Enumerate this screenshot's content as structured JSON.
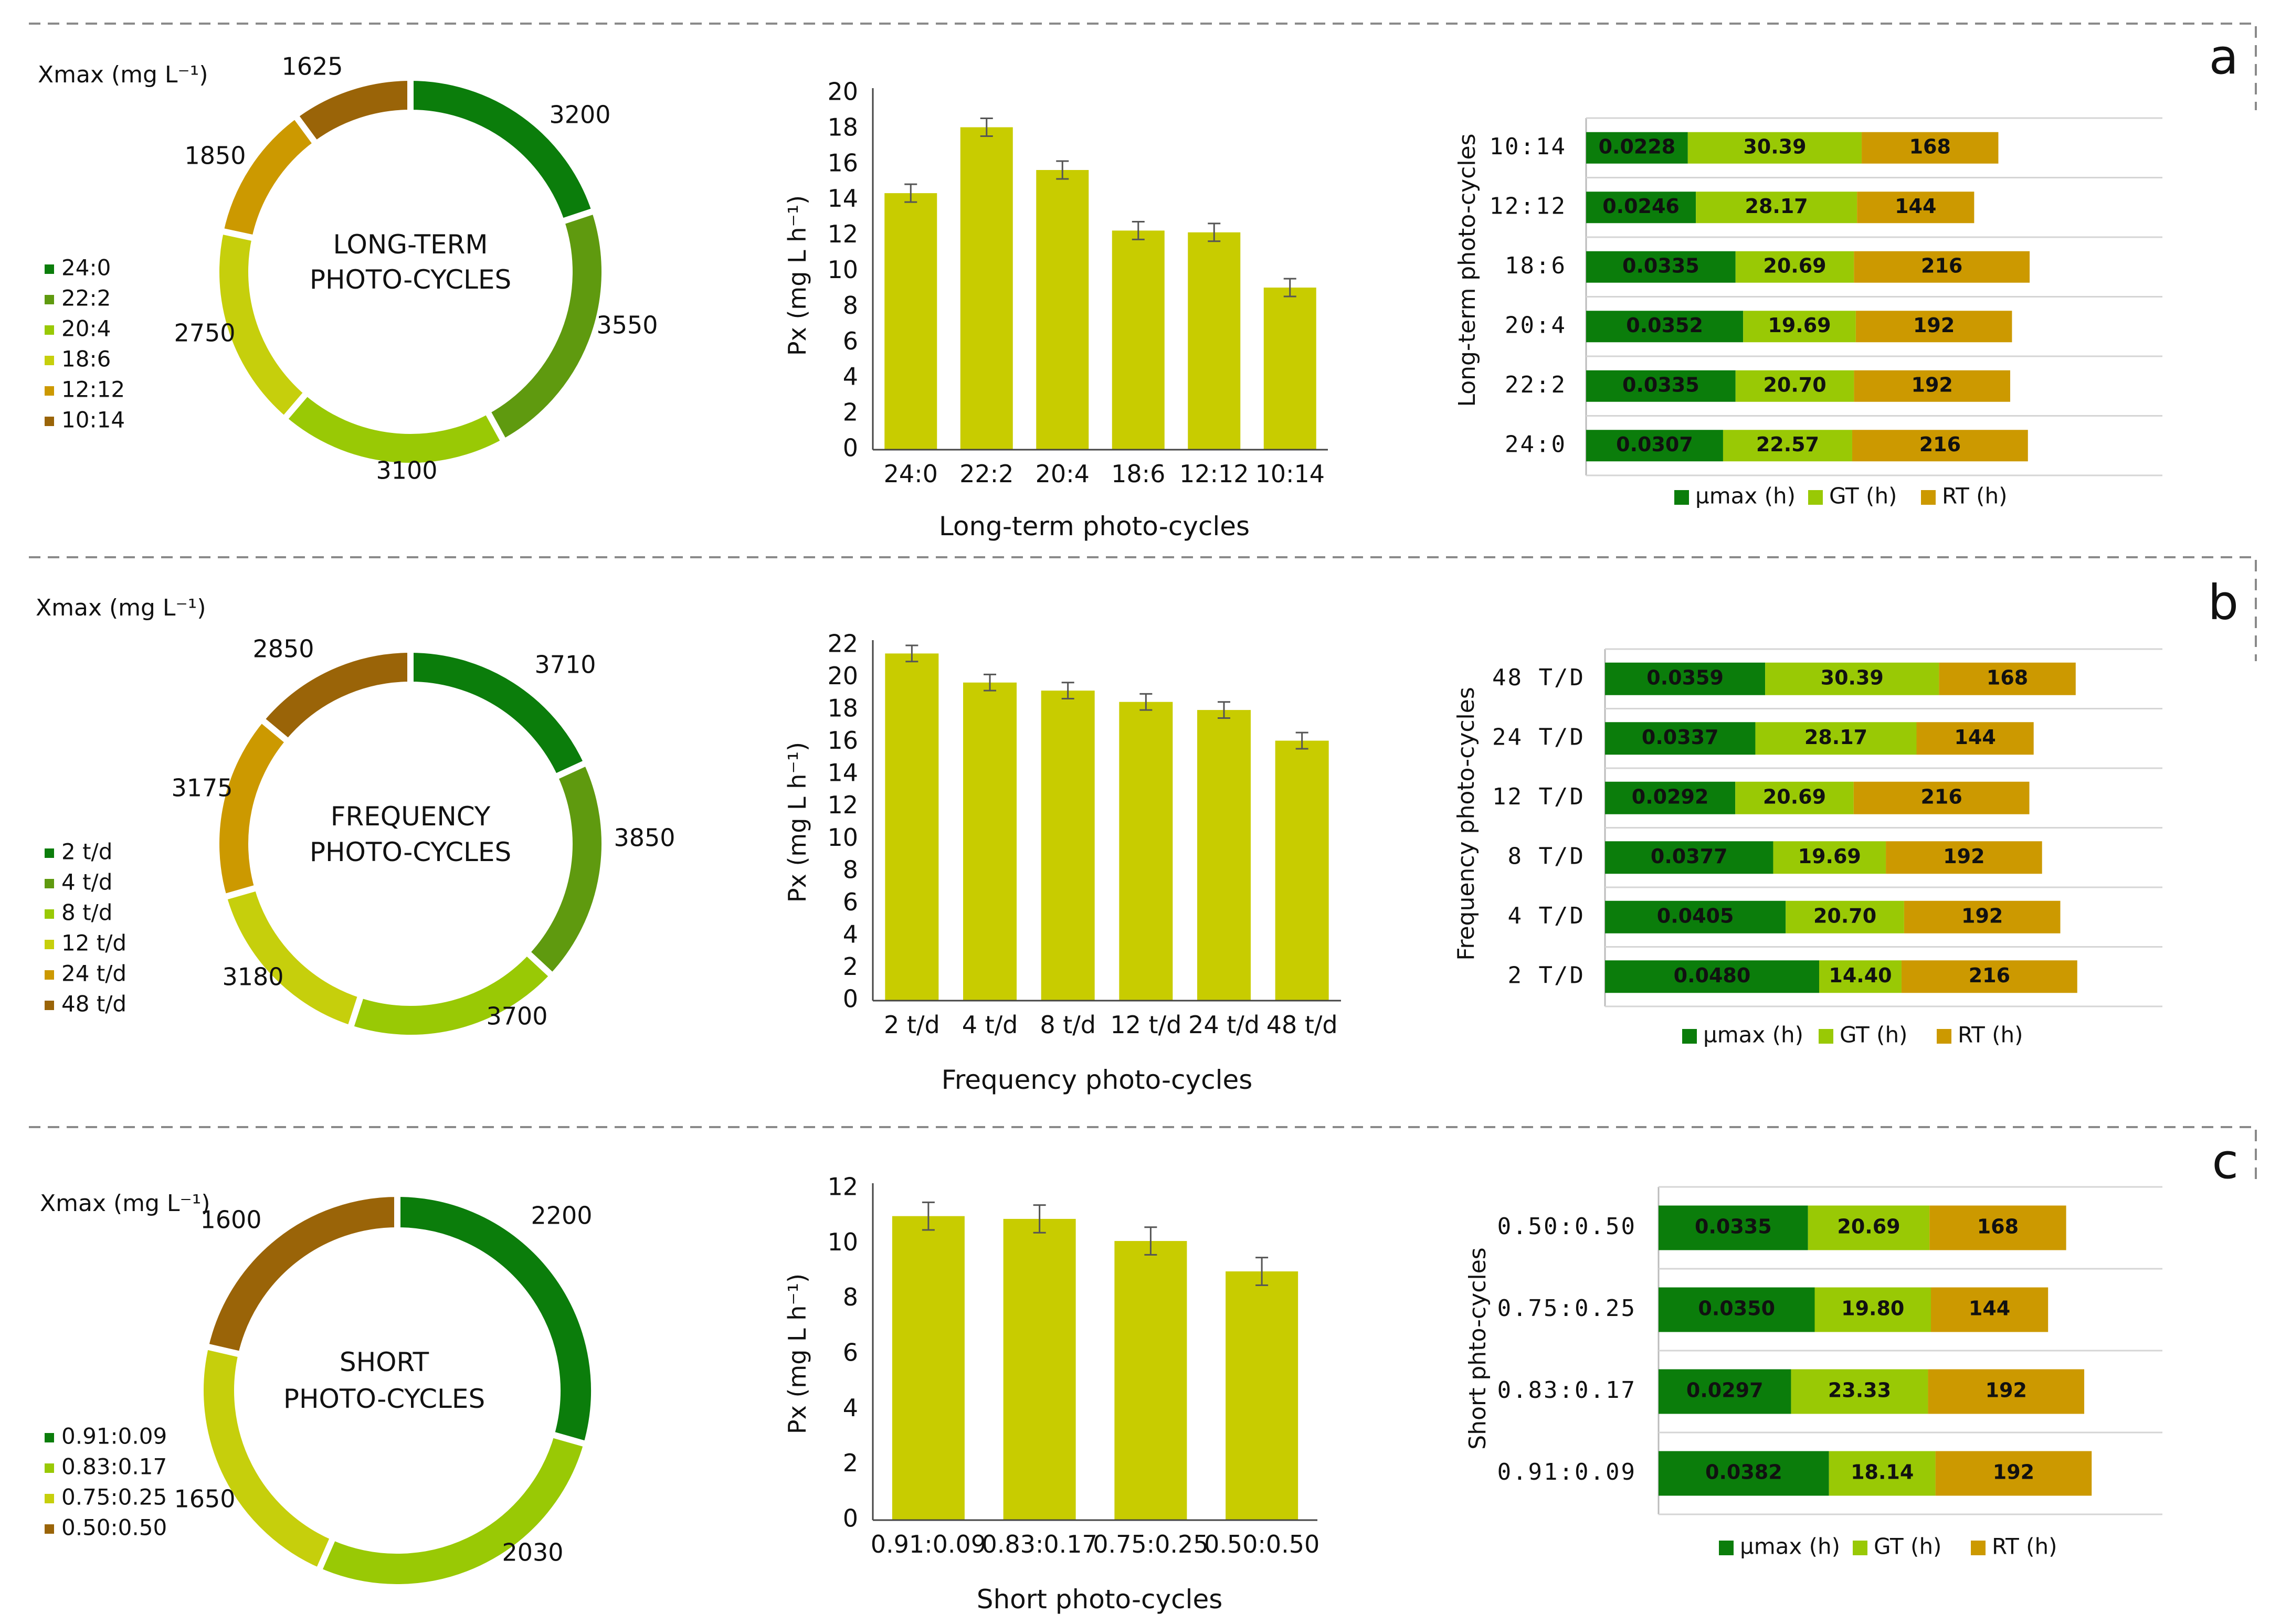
{
  "colors": {
    "g1": "#0b7d0b",
    "g2": "#5f9a0f",
    "g3": "#99c905",
    "g4": "#c6cf0c",
    "g5": "#cc9900",
    "g6": "#9a6408",
    "bar": "#c8cc00"
  },
  "panels": [
    {
      "letter": "a",
      "donut": {
        "title_lines": [
          "LONG-TERM",
          "PHOTO-CYCLES"
        ],
        "xmax_label": "Xmax (mg L⁻¹)",
        "categories": [
          "24:0",
          "22:2",
          "20:4",
          "18:6",
          "12:12",
          "10:14"
        ],
        "values": [
          3200,
          3550,
          3100,
          2750,
          1850,
          1625
        ],
        "colors": [
          "#0b7d0b",
          "#5f9a0f",
          "#99c905",
          "#c6cf0c",
          "#cc9900",
          "#9a6408"
        ]
      },
      "bar": {
        "type": "bar",
        "categories": [
          "24:0",
          "22:2",
          "20:4",
          "18:6",
          "12:12",
          "10:14"
        ],
        "values": [
          14.4,
          18.1,
          15.7,
          12.3,
          12.2,
          9.1
        ],
        "errors": [
          0.5,
          0.5,
          0.5,
          0.5,
          0.5,
          0.5
        ],
        "ylim": [
          0,
          20
        ],
        "ytick_labels": [
          "0",
          "2",
          "4",
          "6",
          "8",
          "10",
          "12",
          "14",
          "16",
          "18",
          "20"
        ],
        "ylabel": "Px (mg L h⁻¹)",
        "xlabel": "Long-term photo-cycles"
      },
      "hbar": {
        "type": "bar",
        "ylabel": "Long-term photo-cycles",
        "categories": [
          "10:14",
          "12:12",
          "18:6",
          "20:4",
          "22:2",
          "24:0"
        ],
        "mu": [
          "0.0228",
          "0.0246",
          "0.0335",
          "0.0352",
          "0.0335",
          "0.0307"
        ],
        "gt": [
          "30.39",
          "28.17",
          "20.69",
          "19.69",
          "20.70",
          "22.57"
        ],
        "rt": [
          "168",
          "144",
          "216",
          "192",
          "192",
          "216"
        ],
        "legend": [
          "µmax (h)",
          "GT (h)",
          "RT (h)"
        ]
      }
    },
    {
      "letter": "b",
      "donut": {
        "title_lines": [
          "FREQUENCY",
          "PHOTO-CYCLES"
        ],
        "xmax_label": "Xmax (mg L⁻¹)",
        "categories": [
          "2 t/d",
          "4 t/d",
          "8 t/d",
          "12 t/d",
          "24 t/d",
          "48 t/d"
        ],
        "values": [
          3710,
          3850,
          3700,
          3180,
          3175,
          2850
        ],
        "colors": [
          "#0b7d0b",
          "#5f9a0f",
          "#99c905",
          "#c6cf0c",
          "#cc9900",
          "#9a6408"
        ]
      },
      "bar": {
        "type": "bar",
        "categories": [
          "2 t/d",
          "4 t/d",
          "8 t/d",
          "12 t/d",
          "24 t/d",
          "48 t/d"
        ],
        "values": [
          21.5,
          19.7,
          19.2,
          18.5,
          18.0,
          16.1
        ],
        "errors": [
          0.5,
          0.5,
          0.5,
          0.5,
          0.5,
          0.5
        ],
        "ylim": [
          0,
          22
        ],
        "ytick_labels": [
          "0",
          "2",
          "4",
          "6",
          "8",
          "10",
          "12",
          "14",
          "16",
          "18",
          "20",
          "22"
        ],
        "ylabel": "Px (mg L h⁻¹)",
        "xlabel": "Frequency photo-cycles"
      },
      "hbar": {
        "type": "bar",
        "ylabel": "Frequency photo-cycles",
        "categories": [
          "48 T/D",
          "24 T/D",
          "12 T/D",
          "8 T/D",
          "4 T/D",
          "2 T/D"
        ],
        "mu": [
          "0.0359",
          "0.0337",
          "0.0292",
          "0.0377",
          "0.0405",
          "0.0480"
        ],
        "gt": [
          "30.39",
          "28.17",
          "20.69",
          "19.69",
          "20.70",
          "14.40"
        ],
        "rt": [
          "168",
          "144",
          "216",
          "192",
          "192",
          "216"
        ],
        "legend": [
          "µmax (h)",
          "GT (h)",
          "RT (h)"
        ]
      }
    },
    {
      "letter": "c",
      "donut": {
        "title_lines": [
          "SHORT",
          "PHOTO-CYCLES"
        ],
        "xmax_label": "Xmax (mg L⁻¹)",
        "categories": [
          "0.91:0.09",
          "0.83:0.17",
          "0.75:0.25",
          "0.50:0.50"
        ],
        "values": [
          2200,
          2030,
          1650,
          1600
        ],
        "colors": [
          "#0b7d0b",
          "#99c905",
          "#c6cf0c",
          "#9a6408"
        ]
      },
      "bar": {
        "type": "bar",
        "categories": [
          "0.91:0.09",
          "0.83:0.17",
          "0.75:0.25",
          "0.50:0.50"
        ],
        "values": [
          11.0,
          10.9,
          10.1,
          9.0
        ],
        "errors": [
          0.5,
          0.5,
          0.5,
          0.5
        ],
        "ylim": [
          0,
          12
        ],
        "ytick_labels": [
          "0",
          "2",
          "4",
          "6",
          "8",
          "10",
          "12"
        ],
        "ylabel": "Px (mg L h⁻¹)",
        "xlabel": "Short photo-cycles"
      },
      "hbar": {
        "type": "bar",
        "ylabel": "Short phto-cycles",
        "categories": [
          "0.50:0.50",
          "0.75:0.25",
          "0.83:0.17",
          "0.91:0.09"
        ],
        "mu": [
          "0.0335",
          "0.0350",
          "0.0297",
          "0.0382"
        ],
        "gt": [
          "20.69",
          "19.80",
          "23.33",
          "18.14"
        ],
        "rt": [
          "168",
          "144",
          "192",
          "192"
        ],
        "legend": [
          "µmax (h)",
          "GT (h)",
          "RT (h)"
        ]
      }
    }
  ]
}
